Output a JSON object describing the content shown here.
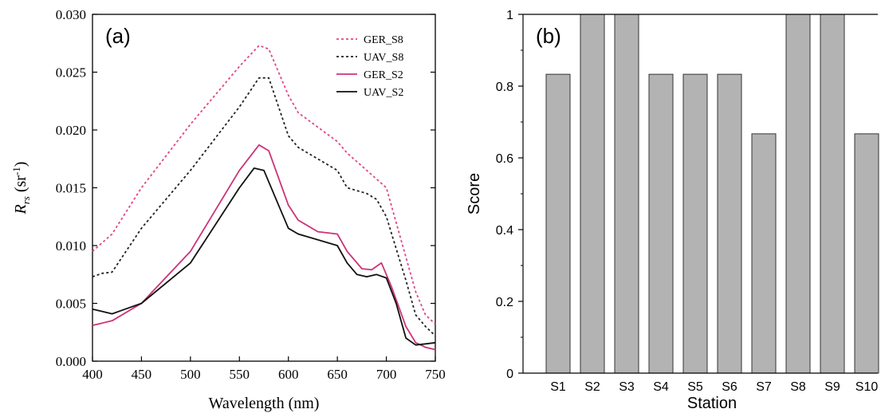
{
  "chart_data": [
    {
      "type": "line",
      "panel_label": "(a)",
      "xlabel": "Wavelength (nm)",
      "ylabel_main": "R",
      "ylabel_sub": "rs",
      "ylabel_unit_pre": " (sr",
      "ylabel_unit_sup": "-1",
      "ylabel_unit_post": ")",
      "xlim": [
        400,
        750
      ],
      "ylim": [
        0,
        0.03
      ],
      "xticks": [
        "400",
        "450",
        "500",
        "550",
        "600",
        "650",
        "700",
        "750"
      ],
      "yticks": [
        "0.000",
        "0.005",
        "0.010",
        "0.015",
        "0.020",
        "0.025",
        "0.030"
      ],
      "legend_position": "top-right",
      "series": [
        {
          "name": "GER_S8",
          "color": "#e0458a",
          "style": "dashed",
          "x": [
            400,
            420,
            450,
            500,
            550,
            570,
            580,
            600,
            610,
            650,
            660,
            680,
            700,
            720,
            730,
            740,
            750
          ],
          "y": [
            0.0095,
            0.011,
            0.015,
            0.0205,
            0.0255,
            0.0273,
            0.027,
            0.023,
            0.0215,
            0.019,
            0.018,
            0.0165,
            0.015,
            0.009,
            0.006,
            0.004,
            0.0032
          ]
        },
        {
          "name": "UAV_S8",
          "color": "#222222",
          "style": "dashed",
          "x": [
            400,
            410,
            420,
            450,
            500,
            550,
            570,
            580,
            600,
            610,
            650,
            660,
            680,
            690,
            700,
            720,
            730,
            740,
            750
          ],
          "y": [
            0.0073,
            0.0076,
            0.0077,
            0.0115,
            0.0165,
            0.022,
            0.0245,
            0.0245,
            0.0195,
            0.0185,
            0.0165,
            0.015,
            0.0145,
            0.014,
            0.0125,
            0.007,
            0.004,
            0.003,
            0.0022
          ]
        },
        {
          "name": "GER_S2",
          "color": "#cc3377",
          "style": "solid",
          "x": [
            400,
            420,
            450,
            500,
            550,
            570,
            580,
            600,
            610,
            630,
            650,
            660,
            675,
            685,
            695,
            705,
            720,
            730,
            740,
            750
          ],
          "y": [
            0.0031,
            0.0035,
            0.005,
            0.0095,
            0.0165,
            0.0187,
            0.0182,
            0.0135,
            0.0122,
            0.0112,
            0.011,
            0.0095,
            0.008,
            0.0079,
            0.0085,
            0.0065,
            0.003,
            0.0016,
            0.0012,
            0.001
          ]
        },
        {
          "name": "UAV_S2",
          "color": "#111111",
          "style": "solid",
          "x": [
            400,
            410,
            420,
            430,
            450,
            500,
            550,
            565,
            575,
            590,
            600,
            610,
            630,
            650,
            660,
            670,
            680,
            690,
            700,
            710,
            720,
            730,
            740,
            750
          ],
          "y": [
            0.0045,
            0.0043,
            0.0041,
            0.0044,
            0.005,
            0.0085,
            0.015,
            0.0167,
            0.0165,
            0.0135,
            0.0115,
            0.011,
            0.0105,
            0.01,
            0.0085,
            0.0075,
            0.0073,
            0.0075,
            0.0072,
            0.005,
            0.002,
            0.0014,
            0.0015,
            0.0016
          ]
        }
      ]
    },
    {
      "type": "bar",
      "panel_label": "(b)",
      "xlabel": "Station",
      "ylabel": "Score",
      "ylim": [
        0,
        1
      ],
      "yticks": [
        "0",
        "0.2",
        "0.4",
        "0.6",
        "0.8",
        "1"
      ],
      "categories": [
        "S1",
        "S2",
        "S3",
        "S4",
        "S5",
        "S6",
        "S7",
        "S8",
        "S9",
        "S10"
      ],
      "values": [
        0.833,
        1.0,
        1.0,
        0.833,
        0.833,
        0.833,
        0.667,
        1.0,
        1.0,
        0.667
      ],
      "bar_color": "#b3b3b3",
      "bar_edge_color": "#333333"
    }
  ]
}
